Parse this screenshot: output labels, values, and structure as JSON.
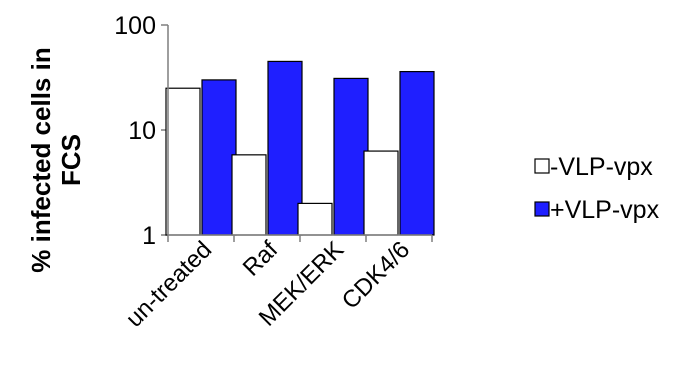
{
  "chart_data": {
    "type": "bar",
    "categories": [
      "un-treated",
      "Raf",
      "MEK/ERK",
      "CDK4/6"
    ],
    "series": [
      {
        "name": "-VLP-vpx",
        "values": [
          25,
          5.8,
          2.0,
          6.3
        ],
        "color": "#ffffff",
        "stroke": "#000000"
      },
      {
        "name": "+VLP-vpx",
        "values": [
          30,
          45,
          31,
          36
        ],
        "color": "#1f1fff",
        "stroke": "#000000"
      }
    ],
    "yscale": "log",
    "ylim": [
      1,
      100
    ],
    "yticks": [
      "1",
      "10",
      "100"
    ],
    "ylabel_lines": [
      "% infected cells in",
      "FCS"
    ],
    "xlabel": "",
    "grid": false,
    "legend_position": "right"
  }
}
